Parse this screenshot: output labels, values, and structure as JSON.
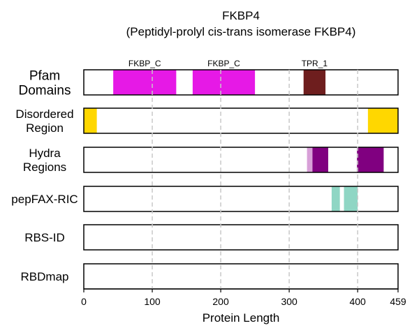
{
  "chart_data": {
    "type": "domain-track",
    "title": "FKBP4",
    "subtitle": "(Peptidyl-prolyl cis-trans isomerase FKBP4)",
    "xlabel": "Protein Length",
    "xlim": [
      0,
      459
    ],
    "xticks": [
      0,
      100,
      200,
      300,
      400,
      459
    ],
    "grid_x": [
      100,
      200,
      300,
      400
    ],
    "grid": "vertical dashed",
    "tracks": [
      {
        "label": [
          "Pfam",
          "Domains"
        ],
        "segments": [
          {
            "start": 43,
            "end": 135,
            "color": "#e619e6",
            "label": "FKBP_C"
          },
          {
            "start": 159,
            "end": 250,
            "color": "#e619e6",
            "label": "FKBP_C"
          },
          {
            "start": 321,
            "end": 353,
            "color": "#6e1e1e",
            "label": "TPR_1"
          }
        ]
      },
      {
        "label": [
          "Disordered",
          "Region"
        ],
        "segments": [
          {
            "start": 0,
            "end": 19,
            "color": "#ffd700"
          },
          {
            "start": 415,
            "end": 459,
            "color": "#ffd700"
          }
        ]
      },
      {
        "label": [
          "Hydra",
          "Regions"
        ],
        "segments": [
          {
            "start": 326,
            "end": 334,
            "color": "#d8a0d8"
          },
          {
            "start": 334,
            "end": 357,
            "color": "#800080"
          },
          {
            "start": 399,
            "end": 438,
            "color": "#800080"
          }
        ]
      },
      {
        "label": [
          "pepFAX-RIC"
        ],
        "segments": [
          {
            "start": 362,
            "end": 374,
            "color": "#8fd6c4"
          },
          {
            "start": 380,
            "end": 400,
            "color": "#8fd6c4"
          }
        ]
      },
      {
        "label": [
          "RBS-ID"
        ],
        "segments": []
      },
      {
        "label": [
          "RBDmap"
        ],
        "segments": []
      }
    ]
  }
}
